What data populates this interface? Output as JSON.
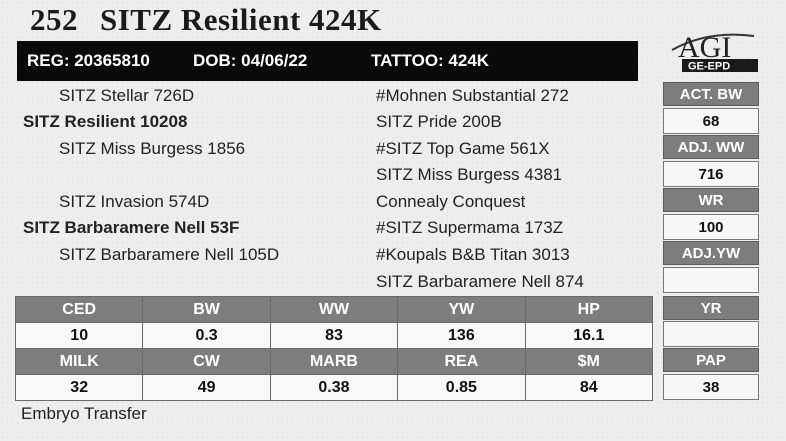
{
  "header": {
    "lot_number": "252",
    "name": "SITZ Resilient 424K"
  },
  "reg_bar": {
    "reg": "REG: 20365810",
    "dob": "DOB: 04/06/22",
    "tattoo": "TATTOO: 424K"
  },
  "logo": {
    "main": "AGI",
    "sub": "GE-EPD"
  },
  "pedigree": {
    "left": [
      "SITZ Stellar 726D",
      "SITZ Resilient 10208",
      "SITZ Miss Burgess 1856",
      "SITZ Invasion 574D",
      "SITZ Barbaramere Nell 53F",
      "SITZ Barbaramere Nell 105D"
    ],
    "right": [
      "#Mohnen Substantial 272",
      "SITZ Pride 200B",
      "#SITZ Top Game 561X",
      "SITZ Miss Burgess 4381",
      "Connealy Conquest",
      "#SITZ Supermama 173Z",
      "#Koupals B&B Titan 3013",
      "SITZ Barbaramere Nell 874"
    ]
  },
  "side_stats": [
    {
      "label": "ACT. BW",
      "value": "68"
    },
    {
      "label": "ADJ. WW",
      "value": "716"
    },
    {
      "label": "WR",
      "value": "100"
    },
    {
      "label": "ADJ.YW",
      "value": ""
    },
    {
      "label": "YR",
      "value": ""
    },
    {
      "label": "PAP",
      "value": "38"
    }
  ],
  "epd": {
    "row1_headers": [
      "CED",
      "BW",
      "WW",
      "YW",
      "HP"
    ],
    "row1_values": [
      "10",
      "0.3",
      "83",
      "136",
      "16.1"
    ],
    "row2_headers": [
      "MILK",
      "CW",
      "MARB",
      "REA",
      "$M"
    ],
    "row2_values": [
      "32",
      "49",
      "0.38",
      "0.85",
      "84"
    ]
  },
  "footer": {
    "note": "Embryo Transfer"
  },
  "colors": {
    "label_bg": "#7d7d7d",
    "bar_bg": "#0a0a0a",
    "paper": "#eeeeee"
  }
}
